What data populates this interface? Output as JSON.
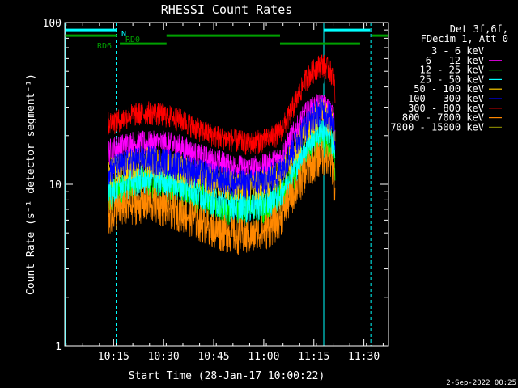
{
  "chart_data": {
    "type": "line",
    "title": "RHESSI Count Rates",
    "xlabel": "Start Time (28-Jan-17 10:00:22)",
    "ylabel": "Count Rate (s⁻¹ detector segment⁻¹)",
    "y_scale": "log",
    "ylim": [
      1,
      100
    ],
    "xlim_minutes": [
      0,
      97
    ],
    "x_ticks": [
      "10:15",
      "10:30",
      "10:45",
      "11:00",
      "11:15",
      "11:30"
    ],
    "x_tick_minutes": [
      14.63,
      29.63,
      44.63,
      59.63,
      74.63,
      89.63
    ],
    "y_ticks": [
      "1",
      "10",
      "100"
    ],
    "legend_header": [
      "Det 3f,6f,",
      "FDecim 1, Att 0"
    ],
    "timestamp": "2-Sep-2022 00:25",
    "x_minutes": [
      13,
      16,
      20,
      25,
      30,
      35,
      40,
      45,
      50,
      55,
      60,
      63,
      65,
      67,
      70,
      72,
      75,
      77,
      79,
      80.6,
      81
    ],
    "series": [
      {
        "name": "3 - 6 keV",
        "color": "#000000",
        "values": [
          24,
          26,
          28,
          29,
          28,
          26,
          23,
          21,
          20,
          19,
          20,
          21,
          22,
          25,
          32,
          38,
          44,
          46,
          43,
          40,
          30
        ]
      },
      {
        "name": "6 - 12 keV",
        "color": "#ff00ff",
        "values": [
          16,
          17,
          18,
          18,
          18,
          17,
          15,
          14,
          13,
          12.5,
          13,
          14,
          15,
          18,
          23,
          27,
          30,
          31,
          29,
          27,
          20
        ]
      },
      {
        "name": "12 - 25 keV",
        "color": "#00ff00",
        "values": [
          8.5,
          9,
          10,
          10.5,
          10,
          9.5,
          8.5,
          7.5,
          7.2,
          7.0,
          7.5,
          8,
          8.5,
          10,
          13,
          15,
          18,
          20,
          18,
          17,
          12
        ]
      },
      {
        "name": "25 - 50 keV",
        "color": "#00ffff",
        "values": [
          9,
          9.5,
          10.5,
          11,
          10.5,
          10,
          9,
          8,
          7.5,
          7.3,
          7.8,
          8.5,
          9,
          11,
          14,
          17,
          20,
          22,
          20,
          19,
          13
        ]
      },
      {
        "name": "50 - 100 keV",
        "color": "#ffcc00",
        "values": [
          12,
          12.5,
          13.5,
          14,
          13.5,
          12.5,
          11.5,
          10.5,
          10,
          9.8,
          10.3,
          11,
          12,
          14,
          18,
          22,
          26,
          28,
          26,
          24,
          17
        ]
      },
      {
        "name": "100 - 300 keV",
        "color": "#0000ff",
        "values": [
          12.5,
          13,
          14,
          14.5,
          14,
          13,
          12,
          11,
          10.5,
          10.2,
          10.8,
          11.5,
          12.5,
          15,
          19,
          23,
          27,
          29,
          27,
          25,
          18
        ]
      },
      {
        "name": "300 - 800 keV",
        "color": "#ff0000",
        "values": [
          24,
          25,
          27,
          28,
          27,
          25,
          22,
          20,
          19,
          18,
          19,
          20,
          22,
          26,
          35,
          44,
          52,
          56,
          52,
          47,
          35
        ]
      },
      {
        "name": "800 - 7000 keV",
        "color": "#ff8800",
        "values": [
          6.5,
          7,
          7.5,
          7.8,
          7.3,
          6.8,
          6,
          5.3,
          5,
          4.8,
          5.2,
          5.8,
          6.5,
          8,
          10,
          12,
          14,
          15.5,
          14,
          13,
          8
        ]
      },
      {
        "name": "7000 - 15000 keV",
        "color": "#808000",
        "values": []
      }
    ],
    "markers": [
      {
        "label": "N",
        "color": "#00ffff",
        "y": 90,
        "segments": [
          [
            0,
            15.5
          ],
          [
            77.5,
            91.5
          ]
        ]
      },
      {
        "label": "RD0",
        "color": "#00a000",
        "y": 83,
        "segments": [
          [
            0,
            15.5
          ],
          [
            30.5,
            64.5
          ],
          [
            92,
            97
          ]
        ]
      },
      {
        "label": "RD6",
        "color": "#00a000",
        "y": 74,
        "segments": [
          [
            16.5,
            30.5
          ],
          [
            64.5,
            88.5
          ]
        ]
      }
    ],
    "vlines": [
      {
        "x": 0.2,
        "color": "#00ffff",
        "style": "solid"
      },
      {
        "x": 15.4,
        "color": "#00ffff",
        "style": "dashed"
      },
      {
        "x": 77.6,
        "color": "#00ffff",
        "style": "solid"
      },
      {
        "x": 91.7,
        "color": "#00ffff",
        "style": "dashed"
      }
    ]
  }
}
